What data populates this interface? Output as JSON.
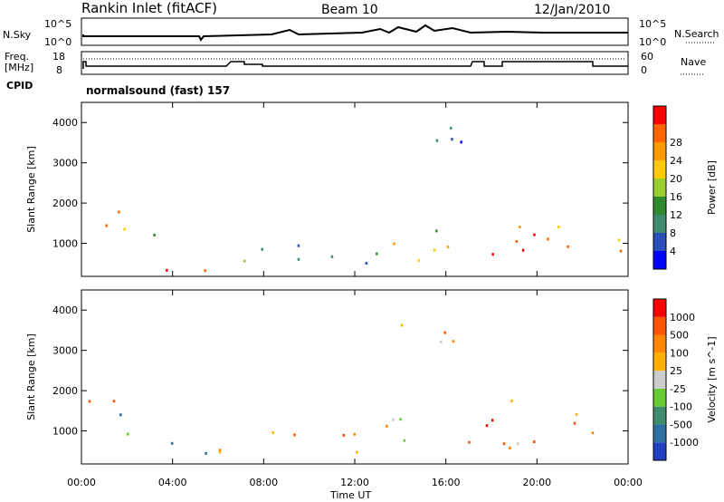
{
  "header": {
    "station": "Rankin Inlet (fitACF)",
    "beam": "Beam 10",
    "date": "12/Jan/2010"
  },
  "strip": {
    "nsky_label": "N.Sky",
    "nsky_ticks": [
      "10^5",
      "10^0"
    ],
    "nsearch_label": "N.Search",
    "nsearch_ticks": [
      "10^5",
      "10^0"
    ],
    "freq_label_1": "Freq.",
    "freq_label_2": "[MHz]",
    "freq_ticks": [
      "18",
      "8"
    ],
    "nave_label": "Nave",
    "nave_ticks": [
      "60",
      "0"
    ],
    "cpid_label": "CPID",
    "cpid_text": "normalsound (fast) 157"
  },
  "chart_data": [
    {
      "type": "heatmap",
      "name": "power",
      "ylabel": "Slant Range [km]",
      "xlabel": "Time UT",
      "xticks": [
        "00:00",
        "04:00",
        "08:00",
        "12:00",
        "16:00",
        "20:00",
        "00:00"
      ],
      "ylim": [
        180,
        4500
      ],
      "yticks": [
        1000,
        2000,
        3000,
        4000
      ],
      "colorbar": {
        "label": "Power [dB]",
        "ticks": [
          "4",
          "8",
          "12",
          "16",
          "20",
          "24",
          "28"
        ],
        "colors": [
          "#0000ff",
          "#2a4fb8",
          "#3d8c6e",
          "#2e8b2e",
          "#9acd32",
          "#ffcc00",
          "#ff9900",
          "#ff6600",
          "#ff0000"
        ]
      },
      "regions": [
        {
          "t0": 0.0,
          "t1": 1.6,
          "r0": 1200,
          "r1": 2100,
          "level": 0.75
        },
        {
          "t0": 1.5,
          "t1": 3.5,
          "r0": 500,
          "r1": 1500,
          "level": 0.5
        },
        {
          "t0": 3.0,
          "t1": 6.0,
          "r0": 250,
          "r1": 800,
          "level": 0.8
        },
        {
          "t0": 6.0,
          "t1": 10.0,
          "r0": 300,
          "r1": 1100,
          "level": 0.35
        },
        {
          "t0": 10.0,
          "t1": 13.0,
          "r0": 400,
          "r1": 1200,
          "level": 0.3
        },
        {
          "t0": 13.0,
          "t1": 16.0,
          "r0": 500,
          "r1": 1700,
          "level": 0.55
        },
        {
          "t0": 16.0,
          "t1": 24.0,
          "r0": 600,
          "r1": 1800,
          "level": 0.85
        },
        {
          "t0": 13.0,
          "t1": 17.0,
          "r0": 3000,
          "r1": 3900,
          "level": 0.3
        }
      ]
    },
    {
      "type": "heatmap",
      "name": "velocity",
      "ylabel": "Slant Range [km]",
      "xlabel": "Time UT",
      "xticks": [
        "00:00",
        "04:00",
        "08:00",
        "12:00",
        "16:00",
        "20:00",
        "00:00"
      ],
      "ylim": [
        180,
        4500
      ],
      "yticks": [
        1000,
        2000,
        3000,
        4000
      ],
      "colorbar": {
        "label": "Velocity [m s^-1]",
        "ticks": [
          "1000",
          "500",
          "100",
          "25",
          "-25",
          "-100",
          "-500",
          "-1000"
        ],
        "colors": [
          "#2040c0",
          "#2a70a0",
          "#3d8c6e",
          "#66cc33",
          "#cccccc",
          "#ffb000",
          "#ff8800",
          "#ff5500",
          "#ff0000"
        ]
      },
      "regions": [
        {
          "t0": 0.0,
          "t1": 1.6,
          "r0": 1200,
          "r1": 2200,
          "level": 0.7
        },
        {
          "t0": 1.5,
          "t1": 3.5,
          "r0": 500,
          "r1": 1500,
          "level": 0.3
        },
        {
          "t0": 3.0,
          "t1": 6.0,
          "r0": 250,
          "r1": 800,
          "level": 0.25
        },
        {
          "t0": 6.0,
          "t1": 10.0,
          "r0": 300,
          "r1": 1100,
          "level": 0.65
        },
        {
          "t0": 10.0,
          "t1": 13.0,
          "r0": 400,
          "r1": 1200,
          "level": 0.6
        },
        {
          "t0": 13.0,
          "t1": 16.0,
          "r0": 500,
          "r1": 1700,
          "level": 0.5
        },
        {
          "t0": 16.0,
          "t1": 24.0,
          "r0": 600,
          "r1": 1800,
          "level": 0.7
        },
        {
          "t0": 13.0,
          "t1": 17.0,
          "r0": 3000,
          "r1": 3900,
          "level": 0.7
        }
      ]
    }
  ]
}
